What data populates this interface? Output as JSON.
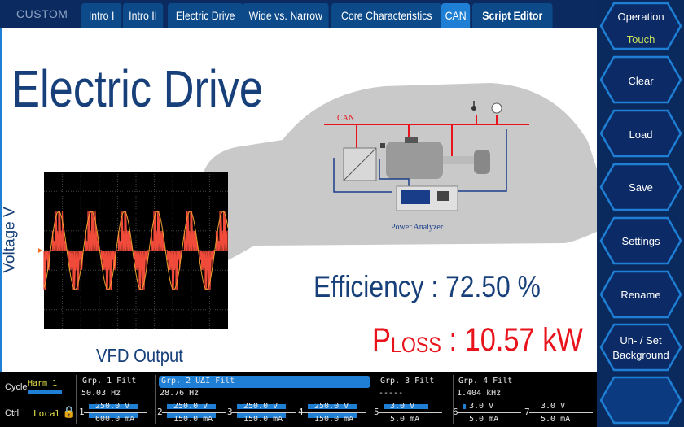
{
  "header": {
    "mode": "CUSTOM",
    "tabs": [
      {
        "label": "Intro I"
      },
      {
        "label": "Intro II"
      },
      {
        "label": "Electric Drive"
      },
      {
        "label": "Wide vs. Narrow"
      },
      {
        "label": "Core Characteristics"
      },
      {
        "label": "CAN",
        "active": true
      },
      {
        "label": "Script Editor"
      }
    ]
  },
  "main": {
    "title": "Electric Drive",
    "efficiency": "Efficiency : 72.50 %",
    "ploss_p": "P",
    "ploss_sub": "LOSS",
    "ploss_value": " : 10.57 kW",
    "scope_ylabel": "Voltage V",
    "scope_caption": "VFD Output",
    "diagram": {
      "bus_label": "CAN",
      "analyzer_label": "Power Analyzer"
    }
  },
  "side": {
    "operation": "Operation",
    "operation_value": "Touch",
    "buttons": [
      "Clear",
      "Load",
      "Save",
      "Settings",
      "Rename"
    ],
    "background_line1": "Un- / Set",
    "background_line2": "Background"
  },
  "status": {
    "cycle_label": "Cycle",
    "cycle_value": "Harm 1",
    "ctrl_label": "Ctrl",
    "ctrl_value": "Local",
    "groups": [
      {
        "label": "Grp. 1",
        "filt": "Filt",
        "freq": "50.03  Hz"
      },
      {
        "label": "Grp. 2",
        "extra": "UΔI",
        "filt": "Filt",
        "freq": "28.76  Hz"
      },
      {
        "label": "Grp. 3",
        "filt": "Filt",
        "freq": "-----"
      },
      {
        "label": "Grp. 4",
        "filt": "Filt",
        "freq": "1.404 kHz"
      }
    ],
    "channels": [
      {
        "n": "1",
        "v": "250.0 V",
        "i": "600.0 mA"
      },
      {
        "n": "2",
        "v": "250.0 V",
        "i": "150.0 mA"
      },
      {
        "n": "3",
        "v": "250.0 V",
        "i": "150.0 mA"
      },
      {
        "n": "4",
        "v": "250.0 V",
        "i": "150.0 mA"
      },
      {
        "n": "5",
        "v": "3.0 V",
        "i": "5.0 mA"
      },
      {
        "n": "6",
        "v": "3.0 V",
        "i": "5.0 mA"
      },
      {
        "n": "7",
        "v": "3.0 V",
        "i": "5.0 mA"
      }
    ]
  },
  "colors": {
    "accent": "#1e7fd4",
    "navy": "#17407a",
    "loss": "#e8131b",
    "highlight": "#e6e24a"
  }
}
